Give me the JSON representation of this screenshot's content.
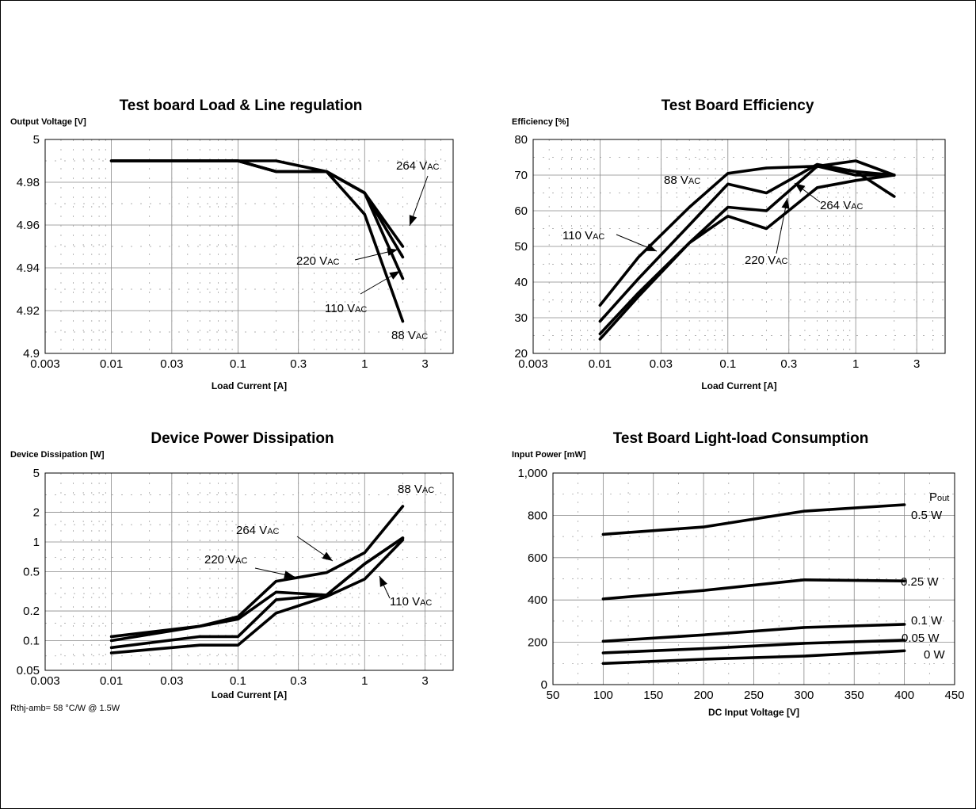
{
  "chart_data": [
    {
      "id": "load-line",
      "type": "line",
      "title": "Test board Load & Line regulation",
      "ylabel": "Output Voltage [V]",
      "xlabel": "Load Current [A]",
      "xscale": "log",
      "xlim": [
        0.003,
        5
      ],
      "ylim": [
        4.9,
        5.0
      ],
      "xticks": [
        0.003,
        0.01,
        0.03,
        0.1,
        0.3,
        1,
        3
      ],
      "xtick_labels": [
        "0.003",
        "0.01",
        "0.03",
        "0.1",
        "0.3",
        "1",
        "3"
      ],
      "yticks": [
        4.9,
        4.92,
        4.94,
        4.96,
        4.98,
        5.0
      ],
      "ytick_labels": [
        "4.9",
        "4.92",
        "4.94",
        "4.96",
        "4.98",
        "5"
      ],
      "grid": true,
      "series": [
        {
          "label": "264 VAC",
          "x": [
            0.01,
            0.1,
            0.2,
            0.5,
            1,
            2
          ],
          "y": [
            4.99,
            4.99,
            4.99,
            4.985,
            4.975,
            4.95
          ]
        },
        {
          "label": "220 VAC",
          "x": [
            0.01,
            0.1,
            0.2,
            0.5,
            1,
            2
          ],
          "y": [
            4.99,
            4.99,
            4.985,
            4.985,
            4.975,
            4.945
          ]
        },
        {
          "label": "110 VAC",
          "x": [
            0.01,
            0.1,
            0.2,
            0.5,
            1,
            2
          ],
          "y": [
            4.99,
            4.99,
            4.985,
            4.985,
            4.975,
            4.935
          ]
        },
        {
          "label": "88 VAC",
          "x": [
            0.01,
            0.1,
            0.2,
            0.5,
            1,
            2
          ],
          "y": [
            4.99,
            4.99,
            4.985,
            4.985,
            4.965,
            4.915
          ]
        }
      ],
      "annotations": [
        {
          "main": "264 V",
          "sub": "AC"
        },
        {
          "main": "220 V",
          "sub": "AC"
        },
        {
          "main": "110 V",
          "sub": "AC"
        },
        {
          "main": "88 V",
          "sub": "AC"
        }
      ]
    },
    {
      "id": "efficiency",
      "type": "line",
      "title": "Test Board Efficiency",
      "ylabel": "Efficiency [%]",
      "xlabel": "Load Current [A]",
      "xscale": "log",
      "xlim": [
        0.003,
        5
      ],
      "ylim": [
        20,
        80
      ],
      "xticks": [
        0.003,
        0.01,
        0.03,
        0.1,
        0.3,
        1,
        3
      ],
      "xtick_labels": [
        "0.003",
        "0.01",
        "0.03",
        "0.1",
        "0.3",
        "1",
        "3"
      ],
      "yticks": [
        20,
        30,
        40,
        50,
        60,
        70,
        80
      ],
      "ytick_labels": [
        "20",
        "30",
        "40",
        "50",
        "60",
        "70",
        "80"
      ],
      "grid": true,
      "series": [
        {
          "label": "88 VAC",
          "x": [
            0.01,
            0.02,
            0.05,
            0.1,
            0.2,
            0.5,
            1,
            2
          ],
          "y": [
            33.5,
            47,
            61,
            70.5,
            72,
            72.5,
            74,
            70
          ]
        },
        {
          "label": "110 VAC",
          "x": [
            0.01,
            0.02,
            0.05,
            0.1,
            0.2,
            0.5,
            1,
            2
          ],
          "y": [
            29,
            41,
            56,
            67.5,
            65,
            73,
            71,
            70
          ]
        },
        {
          "label": "220 VAC",
          "x": [
            0.01,
            0.02,
            0.05,
            0.1,
            0.2,
            0.5,
            1,
            2
          ],
          "y": [
            25.5,
            37,
            51,
            61,
            60,
            72.5,
            70,
            70
          ]
        },
        {
          "label": "264 VAC",
          "x": [
            0.01,
            0.02,
            0.05,
            0.1,
            0.2,
            0.5,
            1,
            2
          ],
          "y": [
            24,
            36,
            51,
            58.5,
            55,
            66.5,
            68.5,
            70
          ]
        },
        {
          "label": "",
          "x": [
            0.5,
            1,
            2
          ],
          "y": [
            72.5,
            71,
            64
          ]
        }
      ],
      "annotations": [
        {
          "main": "88 V",
          "sub": "AC"
        },
        {
          "main": "110 V",
          "sub": "AC"
        },
        {
          "main": "264 V",
          "sub": "AC"
        },
        {
          "main": "220 V",
          "sub": "AC"
        }
      ]
    },
    {
      "id": "dissipation",
      "type": "line",
      "title": "Device Power Dissipation",
      "ylabel": "Device Dissipation [W]",
      "xlabel": "Load Current [A]",
      "xscale": "log",
      "yscale": "log",
      "xlim": [
        0.003,
        5
      ],
      "ylim": [
        0.05,
        5
      ],
      "xticks": [
        0.003,
        0.01,
        0.03,
        0.1,
        0.3,
        1,
        3
      ],
      "xtick_labels": [
        "0.003",
        "0.01",
        "0.03",
        "0.1",
        "0.3",
        "1",
        "3"
      ],
      "yticks": [
        0.05,
        0.1,
        0.2,
        0.5,
        1,
        2,
        5
      ],
      "ytick_labels": [
        "0.05",
        "0.1",
        "0.2",
        "0.5",
        "1",
        "2",
        "5"
      ],
      "grid": true,
      "series": [
        {
          "label": "88 VAC",
          "x": [
            0.01,
            0.05,
            0.1,
            0.2,
            0.5,
            1,
            2
          ],
          "y": [
            0.11,
            0.14,
            0.175,
            0.4,
            0.49,
            0.78,
            2.3
          ]
        },
        {
          "label": "264 VAC",
          "x": [
            0.01,
            0.05,
            0.1,
            0.2,
            0.5,
            1,
            2
          ],
          "y": [
            0.1,
            0.14,
            0.165,
            0.31,
            0.29,
            0.6,
            1.1
          ]
        },
        {
          "label": "220 VAC",
          "x": [
            0.01,
            0.05,
            0.1,
            0.2,
            0.5,
            1,
            2
          ],
          "y": [
            0.085,
            0.11,
            0.11,
            0.26,
            0.29,
            0.6,
            1.1
          ]
        },
        {
          "label": "110 VAC",
          "x": [
            0.01,
            0.05,
            0.1,
            0.2,
            0.5,
            1,
            2
          ],
          "y": [
            0.075,
            0.09,
            0.09,
            0.19,
            0.28,
            0.42,
            1.05
          ]
        }
      ],
      "annotations": [
        {
          "main": "88 V",
          "sub": "AC"
        },
        {
          "main": "264 V",
          "sub": "AC"
        },
        {
          "main": "220 V",
          "sub": "AC"
        },
        {
          "main": "110 V",
          "sub": "AC"
        }
      ],
      "note": "Rthj-amb= 58 °C/W @ 1.5W"
    },
    {
      "id": "light-load",
      "type": "line",
      "title": "Test Board Light-load Consumption",
      "ylabel": "Input Power [mW]",
      "xlabel": "DC Input Voltage [V]",
      "xlim": [
        50,
        450
      ],
      "ylim": [
        0,
        1000
      ],
      "xticks": [
        50,
        100,
        150,
        200,
        250,
        300,
        350,
        400,
        450
      ],
      "xtick_labels": [
        "50",
        "100",
        "150",
        "200",
        "250",
        "300",
        "350",
        "400",
        "450"
      ],
      "yticks": [
        0,
        200,
        400,
        600,
        800,
        1000
      ],
      "ytick_labels": [
        "0",
        "200",
        "400",
        "600",
        "800",
        "1,000"
      ],
      "grid": true,
      "series": [
        {
          "label": "0.5 W",
          "x": [
            100,
            200,
            300,
            400
          ],
          "y": [
            710,
            745,
            820,
            850
          ]
        },
        {
          "label": "0.25 W",
          "x": [
            100,
            200,
            300,
            400
          ],
          "y": [
            405,
            445,
            495,
            490
          ]
        },
        {
          "label": "0.1 W",
          "x": [
            100,
            200,
            300,
            400
          ],
          "y": [
            205,
            235,
            270,
            285
          ]
        },
        {
          "label": "0.05 W",
          "x": [
            100,
            200,
            300,
            400
          ],
          "y": [
            150,
            170,
            195,
            210
          ]
        },
        {
          "label": "0 W",
          "x": [
            100,
            200,
            300,
            400
          ],
          "y": [
            100,
            120,
            135,
            160
          ]
        }
      ],
      "legend_title": {
        "main": "P",
        "sub": "out"
      },
      "labels": [
        "0.5 W",
        "0.25 W",
        "0.1 W",
        "0.05 W",
        "0 W"
      ]
    }
  ]
}
